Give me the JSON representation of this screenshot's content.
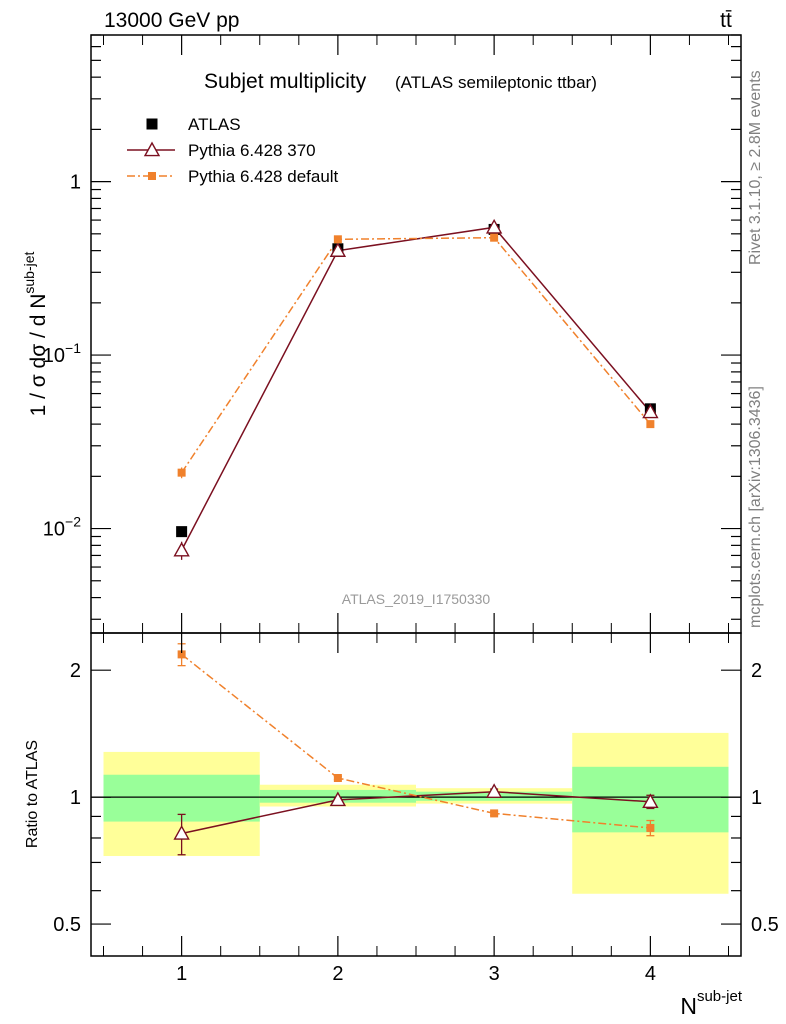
{
  "header": {
    "energy_label": "13000 GeV pp",
    "process_label": "tt̄"
  },
  "side_labels": {
    "rivet": "Rivet 3.1.10, ≥ 2.8M events",
    "source": "mcplots.cern.ch [arXiv:1306.3436]"
  },
  "chart_data": [
    {
      "type": "line",
      "panel": "main",
      "title": "Subjet multiplicity",
      "subtitle": "(ATLAS semileptonic ttbar)",
      "analysis_label": "ATLAS_2019_I1750330",
      "ylabel": "1 / σ dσ / d N",
      "ylabel_sup": "sub-jet",
      "yscale": "log",
      "ylim": [
        0.0025,
        7
      ],
      "xlim": [
        0.42,
        4.58
      ],
      "ytick_labels": [
        {
          "value": 1,
          "base": "1",
          "exp": ""
        },
        {
          "value": 0.1,
          "base": "10",
          "exp": "−1"
        },
        {
          "value": 0.01,
          "base": "10",
          "exp": "−2"
        }
      ],
      "x": [
        1,
        2,
        3,
        4
      ],
      "series": [
        {
          "name": "ATLAS",
          "color": "#000000",
          "marker": "square",
          "values": [
            0.0096,
            0.41,
            0.53,
            0.049
          ],
          "yerr": [
            0.0004,
            0.01,
            0.01,
            0.002
          ]
        },
        {
          "name": "Pythia 6.428 370",
          "color": "#7b1020",
          "marker": "triangle-open",
          "line": "solid",
          "values": [
            0.0075,
            0.4,
            0.545,
            0.047
          ],
          "yerr": [
            0.0009,
            0.01,
            0.01,
            0.0015
          ]
        },
        {
          "name": "Pythia 6.428 default",
          "color": "#f0812c",
          "marker": "square-small",
          "line": "dashdot",
          "values": [
            0.021,
            0.465,
            0.475,
            0.04
          ],
          "yerr": [
            0.0015,
            0.01,
            0.01,
            0.001
          ]
        }
      ],
      "legend_position": "top-left",
      "grid": false
    },
    {
      "type": "line",
      "panel": "ratio",
      "ylabel": "Ratio to ATLAS",
      "xlabel": "N",
      "xlabel_sup": "sub-jet",
      "yscale": "log",
      "ylim": [
        0.42,
        2.45
      ],
      "xlim": [
        0.42,
        4.58
      ],
      "ytick_labels": [
        "2",
        "1",
        "0.5"
      ],
      "ytick_values": [
        2,
        1,
        0.5
      ],
      "xtick_labels": [
        "1",
        "2",
        "3",
        "4"
      ],
      "reference_line": 1,
      "uncertainty_bands": [
        {
          "xmin": 0.5,
          "xmax": 1.5,
          "yellow": [
            0.725,
            1.28
          ],
          "green": [
            0.875,
            1.13
          ]
        },
        {
          "xmin": 1.5,
          "xmax": 2.5,
          "yellow": [
            0.95,
            1.07
          ],
          "green": [
            0.97,
            1.04
          ]
        },
        {
          "xmin": 2.5,
          "xmax": 3.5,
          "yellow": [
            0.965,
            1.05
          ],
          "green": [
            0.98,
            1.03
          ]
        },
        {
          "xmin": 3.5,
          "xmax": 4.5,
          "yellow": [
            0.59,
            1.42
          ],
          "green": [
            0.825,
            1.18
          ]
        }
      ],
      "band_colors": {
        "yellow": "#ffff99",
        "green": "#99ff99"
      },
      "series": [
        {
          "name": "Pythia 6.428 370",
          "color": "#7b1020",
          "marker": "triangle-open",
          "line": "solid",
          "values": [
            0.82,
            0.985,
            1.03,
            0.975
          ],
          "yerr": [
            0.09,
            0.01,
            0.015,
            0.035
          ]
        },
        {
          "name": "Pythia 6.428 default",
          "color": "#f0812c",
          "marker": "square-small",
          "line": "dashdot",
          "values": [
            2.18,
            1.11,
            0.915,
            0.845
          ],
          "yerr": [
            0.13,
            0.01,
            0.01,
            0.035
          ]
        }
      ]
    }
  ]
}
